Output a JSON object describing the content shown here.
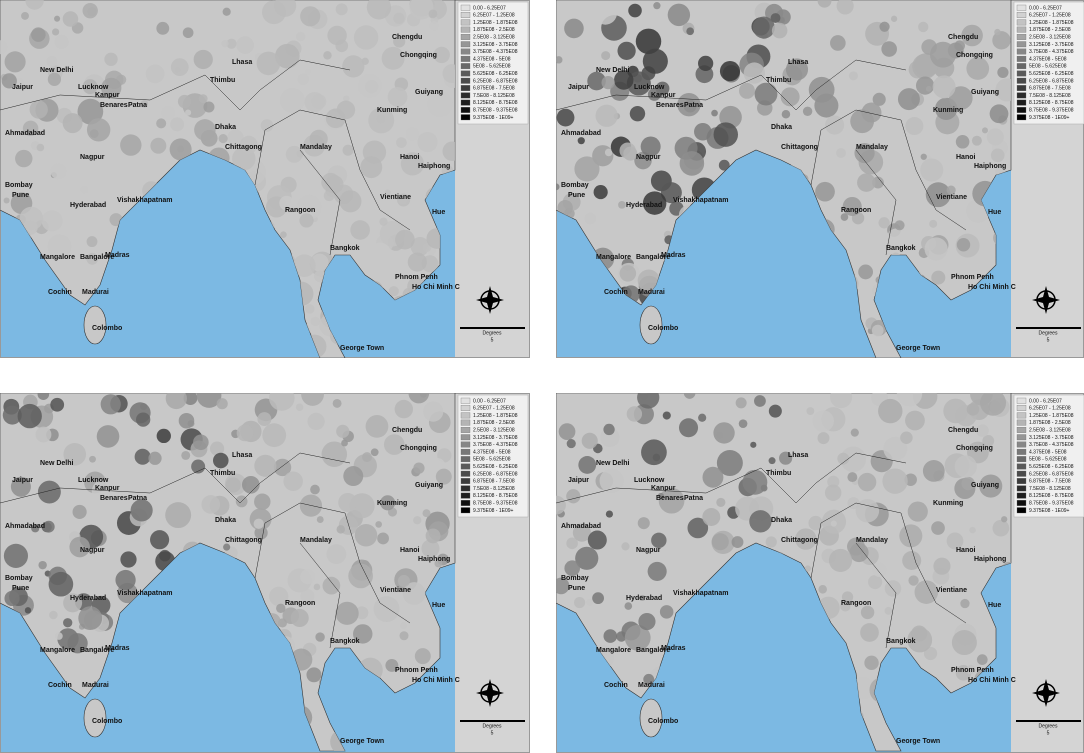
{
  "cities": [
    "Lhasa",
    "Chengdu",
    "Chongqing",
    "New Delhi",
    "Jaipur",
    "Lucknow",
    "Kanpur",
    "Benares",
    "Patna",
    "Thimbu",
    "Kunming",
    "Guiyang",
    "Ahmadabad",
    "Dhaka",
    "Chittagong",
    "Mandalay",
    "Nagpur",
    "Hanoi",
    "Haiphong",
    "Bombay",
    "Pune",
    "Hyderabad",
    "Vishakhapatnam",
    "Vientiane",
    "Rangoon",
    "Hue",
    "Bangkok",
    "Mangalore",
    "Bangalore",
    "Madras",
    "Phnom Penh",
    "Cochin",
    "Madurai",
    "Ho Chi Minh C",
    "Colombo",
    "George Town"
  ],
  "legend": [
    "0.00 - 6.25E07",
    "6.25E07 - 1.25E08",
    "1.25E08 - 1.875E08",
    "1.875E08 - 2.5E08",
    "2.5E08 - 3.125E08",
    "3.125E08 - 3.75E08",
    "3.75E08 - 4.375E08",
    "4.375E08 - 5E08",
    "5E08 - 5.625E08",
    "5.625E08 - 6.25E08",
    "6.25E08 - 6.875E08",
    "6.875E08 - 7.5E08",
    "7.5E08 - 8.125E08",
    "8.125E08 - 8.75E08",
    "8.75E08 - 9.375E08",
    "9.375E08 - 1E09+"
  ],
  "scale_label": "Degrees",
  "scale_value": "5"
}
